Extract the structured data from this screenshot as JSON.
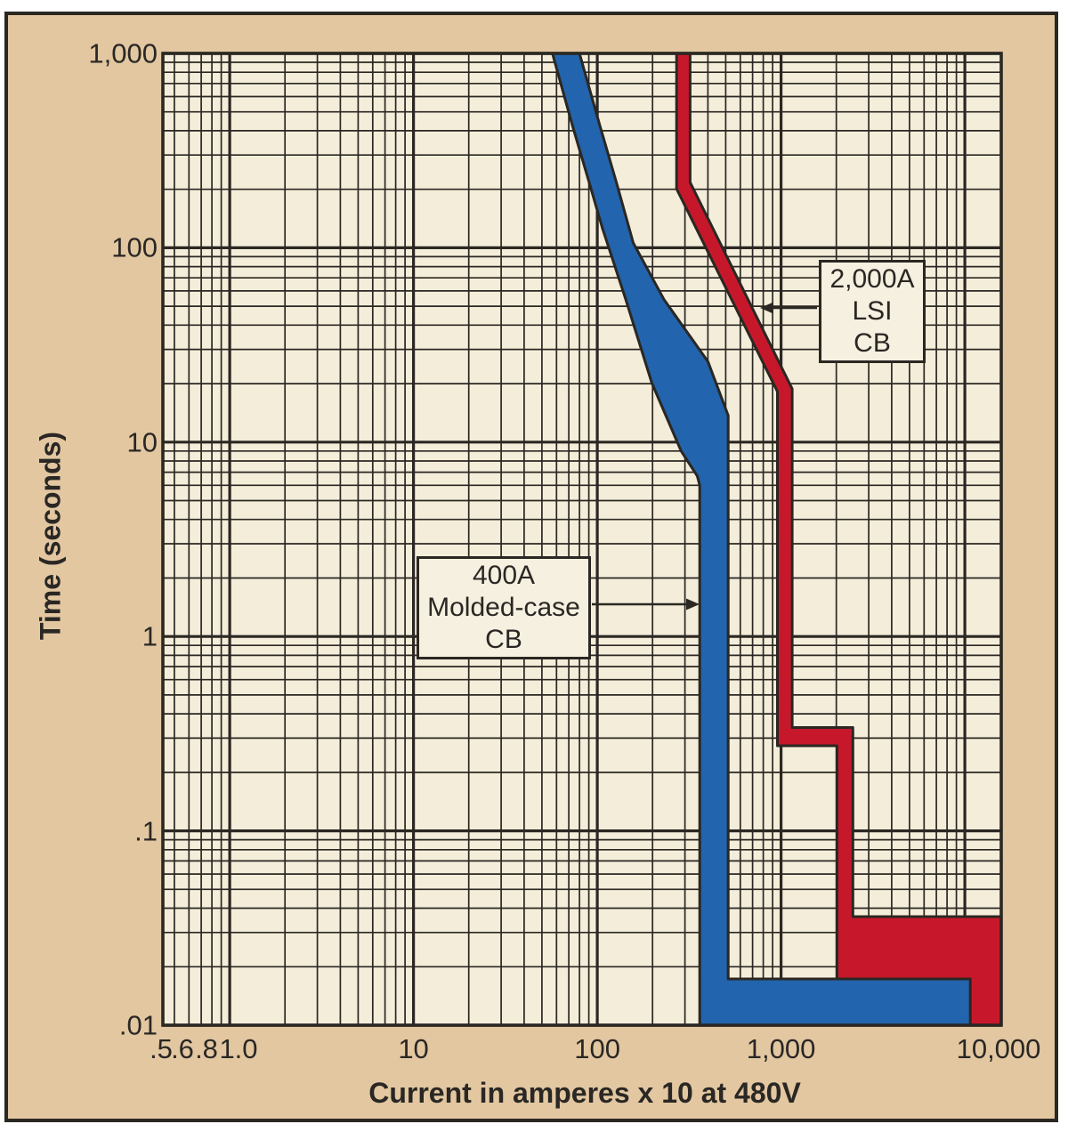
{
  "chart_data": {
    "type": "area",
    "title": "",
    "xlabel": "Current in amperes x 10 at 480V",
    "ylabel": "Time (seconds)",
    "x_scale": "log",
    "y_scale": "log",
    "xlim": [
      0.433,
      15780
    ],
    "ylim": [
      0.01,
      1000
    ],
    "grid": {
      "on": true,
      "minor_divisions": [
        2,
        3,
        4,
        5,
        6,
        7,
        8,
        9
      ]
    },
    "legend_position": "none",
    "x_ticks": [
      {
        "value": 0.5,
        "label": ".5"
      },
      {
        "value": 0.6,
        "label": ".6"
      },
      {
        "value": 0.8,
        "label": ".8"
      },
      {
        "value": 1,
        "label": "1.0"
      },
      {
        "value": 10,
        "label": "10"
      },
      {
        "value": 100,
        "label": "100"
      },
      {
        "value": 1000,
        "label": "1,000"
      },
      {
        "value": 10000,
        "label": "10,000"
      }
    ],
    "y_ticks": [
      {
        "value": 1000,
        "label": "1,000"
      },
      {
        "value": 100,
        "label": "100"
      },
      {
        "value": 10,
        "label": "10"
      },
      {
        "value": 1,
        "label": "1"
      },
      {
        "value": 0.1,
        "label": ".1"
      },
      {
        "value": 0.01,
        "label": ".01"
      }
    ],
    "series": [
      {
        "name": "2,000A LSI CB",
        "kind": "filled-band",
        "color": "#c7182b",
        "polygon": [
          [
            270,
            1000
          ],
          [
            320,
            1000
          ],
          [
            320,
            217
          ],
          [
            1150,
            18.8
          ],
          [
            1150,
            0.34
          ],
          [
            2460,
            0.34
          ],
          [
            2460,
            0.0362
          ],
          [
            15780,
            0.0362
          ],
          [
            15780,
            0.01
          ],
          [
            2015,
            0.01
          ],
          [
            2015,
            0.274
          ],
          [
            955,
            0.274
          ],
          [
            955,
            18.2
          ],
          [
            270,
            201
          ]
        ]
      },
      {
        "name": "400A Molded-case CB",
        "kind": "filled-band",
        "color": "#2264ad",
        "polygon": [
          [
            57,
            1000
          ],
          [
            73,
            430
          ],
          [
            91,
            212
          ],
          [
            107,
            125
          ],
          [
            143,
            54
          ],
          [
            198,
            20.2
          ],
          [
            286,
            9
          ],
          [
            350,
            6.7
          ],
          [
            361,
            6
          ],
          [
            361,
            0.01
          ],
          [
            10700,
            0.01
          ],
          [
            10700,
            0.0173
          ],
          [
            516,
            0.0173
          ],
          [
            516,
            13.7
          ],
          [
            400,
            26
          ],
          [
            231,
            54
          ],
          [
            157,
            106
          ],
          [
            128,
            212
          ],
          [
            103,
            430
          ],
          [
            80,
            1000
          ]
        ]
      }
    ],
    "annotations": [
      {
        "id": "mccb",
        "lines": [
          "400A",
          "Molded-case",
          "CB"
        ],
        "arrow_direction": "right"
      },
      {
        "id": "lsi",
        "lines": [
          "2,000A",
          "LSI",
          "CB"
        ],
        "arrow_direction": "left"
      }
    ]
  },
  "colors": {
    "background": "#ffffff",
    "panel_tan": "#e2c7a1",
    "plot_background": "#f3edda",
    "grid_line": "#2b2722",
    "text": "#2a2724",
    "annotation_box_fill": "#f6f0e0",
    "mccb_blue": "#2264ad",
    "lsi_red": "#c7182b"
  }
}
